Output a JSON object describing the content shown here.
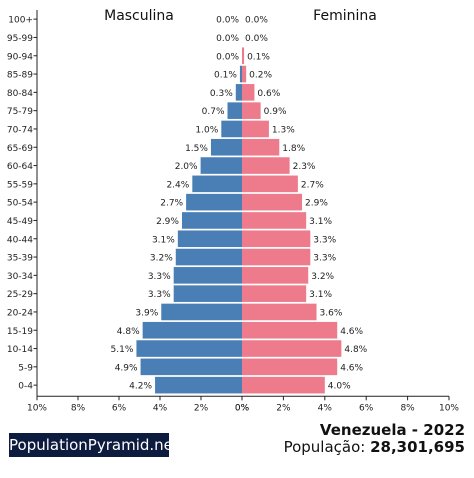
{
  "chart_data": {
    "type": "bar",
    "title": "Venezuela - 2022",
    "left_label": "Masculina",
    "right_label": "Feminina",
    "categories": [
      "100+",
      "95-99",
      "90-94",
      "85-89",
      "80-84",
      "75-79",
      "70-74",
      "65-69",
      "60-64",
      "55-59",
      "50-54",
      "45-49",
      "40-44",
      "35-39",
      "30-34",
      "25-29",
      "20-24",
      "15-19",
      "10-14",
      "5-9",
      "0-4"
    ],
    "series": [
      {
        "name": "Masculina",
        "values": [
          0.0,
          0.0,
          0.0,
          0.1,
          0.3,
          0.7,
          1.0,
          1.5,
          2.0,
          2.4,
          2.7,
          2.9,
          3.1,
          3.2,
          3.3,
          3.3,
          3.9,
          4.8,
          5.1,
          4.9,
          4.2
        ],
        "color": "#4a7fb5"
      },
      {
        "name": "Feminina",
        "values": [
          0.0,
          0.0,
          0.1,
          0.2,
          0.6,
          0.9,
          1.3,
          1.8,
          2.3,
          2.7,
          2.9,
          3.1,
          3.3,
          3.3,
          3.2,
          3.1,
          3.6,
          4.6,
          4.8,
          4.6,
          4.0
        ],
        "color": "#ee7b8b"
      }
    ],
    "value_labels_left": [
      "0.0%",
      "0.0%",
      "0.0%",
      "0.1%",
      "0.3%",
      "0.7%",
      "1.0%",
      "1.5%",
      "2.0%",
      "2.4%",
      "2.7%",
      "2.9%",
      "3.1%",
      "3.2%",
      "3.3%",
      "3.3%",
      "3.9%",
      "4.8%",
      "5.1%",
      "4.9%",
      "4.2%"
    ],
    "value_labels_right": [
      "0.0%",
      "0.0%",
      "0.1%",
      "0.2%",
      "0.6%",
      "0.9%",
      "1.3%",
      "1.8%",
      "2.3%",
      "2.7%",
      "2.9%",
      "3.1%",
      "3.3%",
      "3.3%",
      "3.2%",
      "3.1%",
      "3.6%",
      "4.6%",
      "4.8%",
      "4.6%",
      "4.0%"
    ],
    "x_ticks_left": [
      "10%",
      "8%",
      "6%",
      "4%",
      "2%",
      "0%"
    ],
    "x_ticks_right": [
      "0%",
      "2%",
      "4%",
      "6%",
      "8%",
      "10%"
    ],
    "xlim": [
      0,
      10
    ],
    "grid": false
  },
  "footer": {
    "brand": "PopulationPyramid.net",
    "country_year": "Venezuela - 2022",
    "population_label": "População: ",
    "population_value": "28,301,695"
  }
}
